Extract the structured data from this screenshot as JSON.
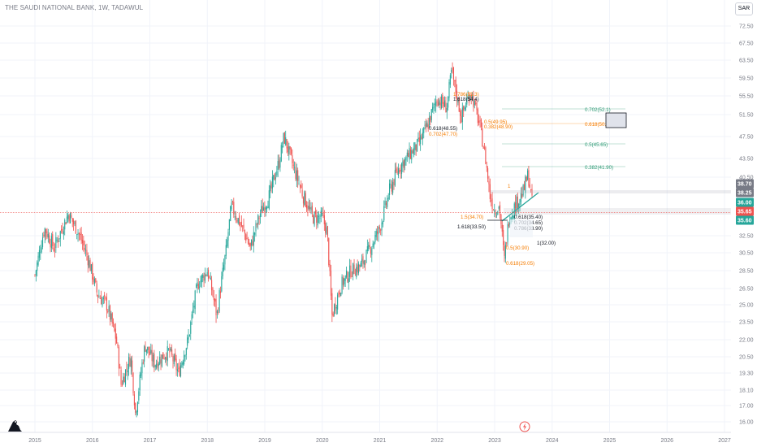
{
  "header": {
    "title": "THE SAUDI NATIONAL BANK, 1W, TADAWUL",
    "currency": "SAR"
  },
  "colors": {
    "up": "#26a69a",
    "down": "#ef5350",
    "fib_green": "#2e9a76",
    "fib_orange": "#f57c00",
    "price_line": "#ef5350"
  },
  "chart_data": {
    "type": "candlestick",
    "symbol": "THE SAUDI NATIONAL BANK",
    "interval": "1W",
    "exchange": "TADAWUL",
    "x_labels": [
      "2015",
      "2016",
      "2017",
      "2018",
      "2019",
      "2020",
      "2021",
      "2022",
      "2023",
      "2024",
      "2025",
      "2026",
      "2027"
    ],
    "y_ticks": [
      "72.50",
      "67.50",
      "63.50",
      "59.50",
      "55.50",
      "51.50",
      "47.50",
      "43.50",
      "40.50",
      "38.70",
      "38.25",
      "36.00",
      "35.65",
      "35.60",
      "32.50",
      "30.50",
      "28.50",
      "26.50",
      "25.00",
      "23.50",
      "22.00",
      "20.50",
      "19.30",
      "18.10",
      "17.00",
      "16.00"
    ],
    "y_tick_values": [
      72.5,
      67.5,
      63.5,
      59.5,
      55.5,
      51.5,
      47.5,
      43.5,
      40.5,
      32.5,
      30.5,
      28.5,
      26.5,
      25.0,
      23.5,
      22.0,
      20.5,
      19.3,
      18.1,
      17.0,
      16.0
    ],
    "price_markers": [
      {
        "label": "38.70",
        "value": 38.7,
        "style": "gray"
      },
      {
        "label": "38.25",
        "value": 38.25,
        "style": "gray"
      },
      {
        "label": "36.00",
        "value": 36.0,
        "style": "green"
      },
      {
        "label": "35.65",
        "value": 35.65,
        "style": "red"
      },
      {
        "label": "35.60",
        "value": 35.6,
        "style": "green"
      }
    ],
    "price_path": [
      [
        "2015-01",
        28.0
      ],
      [
        "2015-03",
        33.5
      ],
      [
        "2015-05",
        31.0
      ],
      [
        "2015-08",
        35.5
      ],
      [
        "2015-10",
        33.0
      ],
      [
        "2015-12",
        30.0
      ],
      [
        "2016-02",
        26.0
      ],
      [
        "2016-04",
        25.0
      ],
      [
        "2016-06",
        22.0
      ],
      [
        "2016-07",
        18.5
      ],
      [
        "2016-09",
        20.5
      ],
      [
        "2016-10",
        16.5
      ],
      [
        "2016-12",
        21.5
      ],
      [
        "2017-02",
        20.0
      ],
      [
        "2017-05",
        21.0
      ],
      [
        "2017-07",
        19.3
      ],
      [
        "2017-09",
        22.0
      ],
      [
        "2017-11",
        27.0
      ],
      [
        "2018-01",
        28.5
      ],
      [
        "2018-03",
        24.0
      ],
      [
        "2018-05",
        31.0
      ],
      [
        "2018-06",
        36.5
      ],
      [
        "2018-08",
        34.0
      ],
      [
        "2018-10",
        31.0
      ],
      [
        "2018-12",
        35.5
      ],
      [
        "2019-02",
        38.0
      ],
      [
        "2019-04",
        43.0
      ],
      [
        "2019-05",
        47.5
      ],
      [
        "2019-07",
        42.0
      ],
      [
        "2019-09",
        38.0
      ],
      [
        "2019-11",
        35.0
      ],
      [
        "2020-01",
        35.0
      ],
      [
        "2020-02",
        33.0
      ],
      [
        "2020-03",
        24.0
      ],
      [
        "2020-05",
        27.0
      ],
      [
        "2020-07",
        28.5
      ],
      [
        "2020-09",
        29.0
      ],
      [
        "2020-11",
        31.0
      ],
      [
        "2021-01",
        33.5
      ],
      [
        "2021-03",
        38.5
      ],
      [
        "2021-05",
        42.0
      ],
      [
        "2021-07",
        44.0
      ],
      [
        "2021-09",
        46.0
      ],
      [
        "2021-11",
        49.5
      ],
      [
        "2022-01",
        55.0
      ],
      [
        "2022-03",
        53.0
      ],
      [
        "2022-04",
        61.0
      ],
      [
        "2022-06",
        51.0
      ],
      [
        "2022-08",
        56.5
      ],
      [
        "2022-10",
        49.0
      ],
      [
        "2022-11",
        44.0
      ],
      [
        "2022-12",
        38.0
      ],
      [
        "2023-01",
        36.0
      ],
      [
        "2023-02",
        36.5
      ],
      [
        "2023-03",
        29.5
      ],
      [
        "2023-04",
        35.0
      ],
      [
        "2023-06",
        37.5
      ],
      [
        "2023-07",
        38.5
      ],
      [
        "2023-08",
        41.0
      ],
      [
        "2023-09",
        36.0
      ]
    ],
    "fib_labels": [
      {
        "text": "0.702(52.1)",
        "color": "green"
      },
      {
        "text": "0.618(50.42)",
        "color": "orange"
      },
      {
        "text": "0.5(45.65)",
        "color": "green"
      },
      {
        "text": "0.382(41.90)",
        "color": "green"
      },
      {
        "text": "1.786(55.3)",
        "color": "orange"
      },
      {
        "text": "1.618(54.4)",
        "color": "dark"
      },
      {
        "text": "0.5(49.95)",
        "color": "orange"
      },
      {
        "text": "0.382(48.90)",
        "color": "orange"
      },
      {
        "text": "0.618(48.55)",
        "color": "dark"
      },
      {
        "text": "0.702(47.70)",
        "color": "orange"
      },
      {
        "text": "1.5(34.70)",
        "color": "orange"
      },
      {
        "text": "1.618(33.50)",
        "color": "dark"
      },
      {
        "text": "0.618(35.40)",
        "color": "dark"
      },
      {
        "text": "0.702(34.65)",
        "color": "dark"
      },
      {
        "text": "0.786(33.90)",
        "color": "dark"
      },
      {
        "text": "1(32.00)",
        "color": "dark"
      },
      {
        "text": "0.5(30.90)",
        "color": "orange"
      },
      {
        "text": "0.618(29.05)",
        "color": "orange"
      },
      {
        "text": "1",
        "color": "orange"
      }
    ]
  }
}
